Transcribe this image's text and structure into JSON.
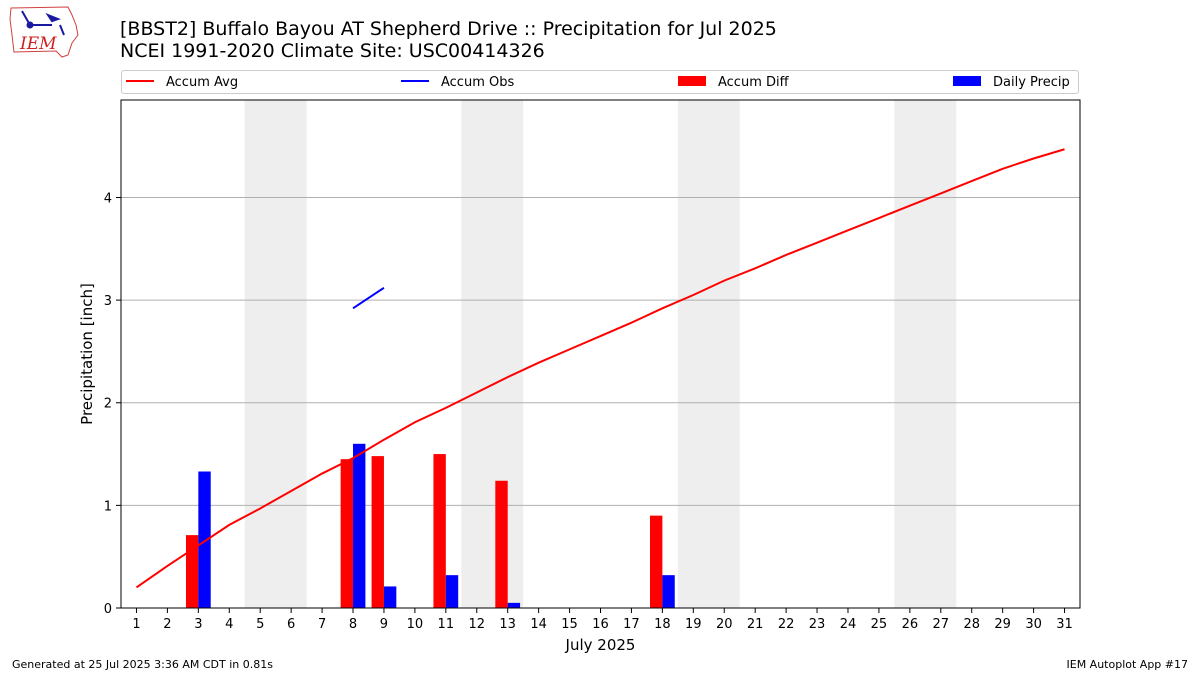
{
  "header": {
    "title_line1": "[BBST2] Buffalo Bayou  AT Shepherd Drive :: Precipitation for Jul 2025",
    "title_line2": "NCEI 1991-2020 Climate Site: USC00414326",
    "logo_text": "IEM"
  },
  "legend": {
    "placement": "top",
    "items": [
      {
        "label": "Accum Avg",
        "kind": "line",
        "color": "#ff0000"
      },
      {
        "label": "Accum Obs",
        "kind": "line",
        "color": "#0000ff"
      },
      {
        "label": "Accum Diff",
        "kind": "bar",
        "color": "#ff0000"
      },
      {
        "label": "Daily Precip",
        "kind": "bar",
        "color": "#0000ff"
      }
    ]
  },
  "chart_data": {
    "type": "bar",
    "xlabel": "July 2025",
    "ylabel": "Precipitation [inch]",
    "xlim": [
      0.5,
      31.5
    ],
    "ylim": [
      0,
      4.95
    ],
    "yticks": [
      0,
      1,
      2,
      3,
      4
    ],
    "ygrid": true,
    "x": [
      1,
      2,
      3,
      4,
      5,
      6,
      7,
      8,
      9,
      10,
      11,
      12,
      13,
      14,
      15,
      16,
      17,
      18,
      19,
      20,
      21,
      22,
      23,
      24,
      25,
      26,
      27,
      28,
      29,
      30,
      31
    ],
    "weekends": [
      [
        5,
        6
      ],
      [
        12,
        13
      ],
      [
        19,
        20
      ],
      [
        26,
        27
      ]
    ],
    "series": [
      {
        "name": "Accum Avg",
        "kind": "line",
        "color": "#ff0000",
        "x": [
          1,
          2,
          3,
          4,
          5,
          6,
          7,
          8,
          9,
          10,
          11,
          12,
          13,
          14,
          15,
          16,
          17,
          18,
          19,
          20,
          21,
          22,
          23,
          24,
          25,
          26,
          27,
          28,
          29,
          30,
          31
        ],
        "values": [
          0.2,
          0.41,
          0.61,
          0.81,
          0.97,
          1.14,
          1.31,
          1.46,
          1.64,
          1.81,
          1.95,
          2.1,
          2.25,
          2.39,
          2.52,
          2.65,
          2.78,
          2.92,
          3.05,
          3.19,
          3.31,
          3.44,
          3.56,
          3.68,
          3.8,
          3.92,
          4.04,
          4.16,
          4.28,
          4.38,
          4.47
        ]
      },
      {
        "name": "Accum Obs",
        "kind": "line",
        "color": "#0000ff",
        "x": [
          8,
          9
        ],
        "values": [
          2.92,
          3.12
        ]
      },
      {
        "name": "Accum Diff",
        "kind": "bar",
        "color": "#ff0000",
        "x": [
          3,
          8,
          9,
          11,
          13,
          18
        ],
        "values": [
          0.71,
          1.45,
          1.48,
          1.5,
          1.24,
          0.9
        ]
      },
      {
        "name": "Daily Precip",
        "kind": "bar",
        "color": "#0000ff",
        "x": [
          3,
          8,
          9,
          11,
          13,
          18
        ],
        "values": [
          1.33,
          1.6,
          0.21,
          0.32,
          0.05,
          0.32
        ]
      }
    ]
  },
  "footer": {
    "left": "Generated at 25 Jul 2025 3:36 AM CDT in 0.81s",
    "right": "IEM Autoplot App #17"
  }
}
